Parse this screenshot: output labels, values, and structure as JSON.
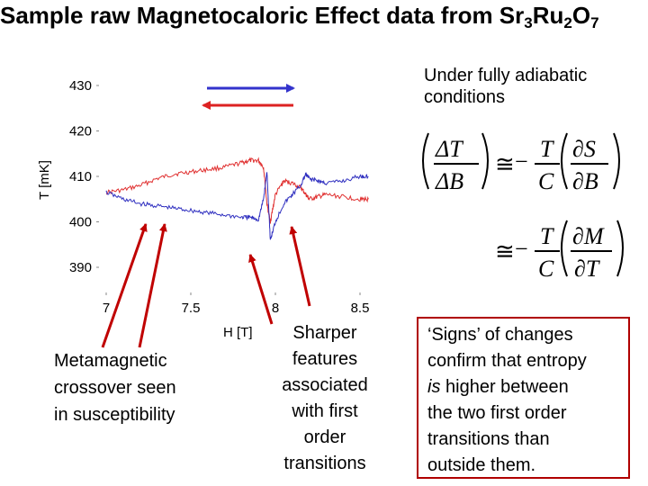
{
  "header": {
    "title_main": "Sample raw Magnetocaloric Effect data from Sr",
    "sub1": "3",
    "ru": "Ru",
    "sub2": "2",
    "o": "O",
    "sub3": "7"
  },
  "chart_data": {
    "type": "line",
    "xlabel": "H [T]",
    "ylabel": "T [mK]",
    "xlim": [
      7.0,
      8.7
    ],
    "ylim": [
      386,
      432
    ],
    "x_ticks": [
      "7",
      "7.5",
      "8",
      "8.5"
    ],
    "y_ticks": [
      "390",
      "400",
      "410",
      "420",
      "430"
    ],
    "grid": false,
    "series": [
      {
        "color": "#e03030",
        "x": [
          7.0,
          7.1,
          7.2,
          7.3,
          7.4,
          7.5,
          7.6,
          7.7,
          7.8,
          7.85,
          7.9,
          7.93,
          7.95,
          7.97,
          8.0,
          8.05,
          8.1,
          8.15,
          8.18,
          8.2,
          8.25,
          8.3,
          8.4,
          8.5,
          8.55
        ],
        "y": [
          406.5,
          407,
          408,
          409.5,
          410.5,
          411,
          411.5,
          412,
          413,
          413.5,
          413.5,
          412,
          404,
          400,
          406,
          409,
          408.5,
          407.5,
          406,
          405,
          405.5,
          406,
          405.5,
          405,
          405
        ]
      },
      {
        "color": "#3030c0",
        "x": [
          7.0,
          7.1,
          7.2,
          7.3,
          7.4,
          7.5,
          7.6,
          7.7,
          7.8,
          7.85,
          7.9,
          7.93,
          7.95,
          7.97,
          8.0,
          8.05,
          8.1,
          8.15,
          8.18,
          8.2,
          8.25,
          8.3,
          8.4,
          8.5,
          8.55
        ],
        "y": [
          406.5,
          405,
          404,
          403.5,
          403,
          402.5,
          402,
          401.5,
          401,
          401,
          400.5,
          405,
          411,
          396,
          400,
          404,
          406,
          408,
          410.5,
          409.5,
          409,
          408.5,
          409,
          410,
          410
        ]
      }
    ]
  },
  "arrows": {
    "top": {
      "color": "#3333cc"
    },
    "bottom": {
      "color": "#dd2222"
    },
    "pointers": {
      "color": "#c00000"
    }
  },
  "notes": {
    "adiabatic_line1": "Under fully adiabatic",
    "adiabatic_line2": "conditions",
    "meta_line1": "Metamagnetic",
    "meta_line2": "crossover seen",
    "meta_line3": "in susceptibility",
    "sharp_line1": "Sharper",
    "sharp_line2": "features",
    "sharp_line3": "associated",
    "sharp_line4": "with first",
    "sharp_line5": "order",
    "sharp_line6": "transitions",
    "signs_line1": "‘Signs’ of changes",
    "signs_line2": "confirm that entropy",
    "signs_line3_em": "is",
    "signs_line3_rest": " higher between",
    "signs_line4": "the two first order",
    "signs_line5": "transitions than",
    "signs_line6": "outside them."
  },
  "equation": {
    "dT": "ΔT",
    "dB": "ΔB",
    "approx": "≅",
    "minus": "−",
    "T": "T",
    "C": "C",
    "dS": "∂S",
    "dBp": "∂B",
    "dM": "∂M",
    "dTp": "∂T"
  }
}
